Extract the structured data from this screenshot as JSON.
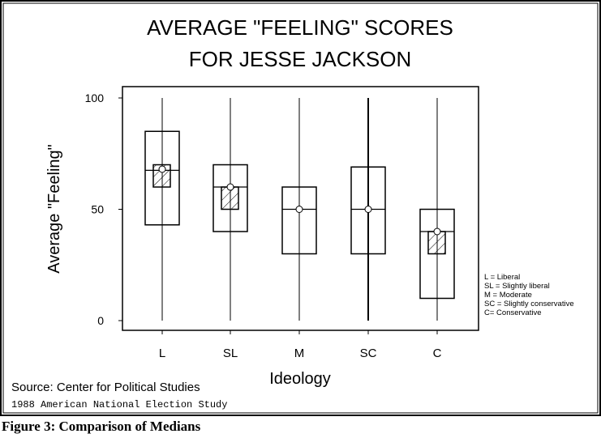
{
  "chart_data": {
    "type": "box",
    "title_lines": [
      "AVERAGE \"FEELING\" SCORES",
      "FOR JESSE JACKSON"
    ],
    "xlabel": "Ideology",
    "ylabel": "Average \"Feeling\"",
    "ylim": [
      0,
      100
    ],
    "yticks": [
      0,
      50,
      100
    ],
    "categories": [
      "L",
      "SL",
      "M",
      "SC",
      "C"
    ],
    "boxes": [
      {
        "category": "L",
        "whisker_low": 0,
        "whisker_high": 100,
        "q1": 43,
        "q3": 85,
        "median": 67.5,
        "mean": 68,
        "inner_low": 60,
        "inner_high": 70
      },
      {
        "category": "SL",
        "whisker_low": 0,
        "whisker_high": 100,
        "q1": 40,
        "q3": 70,
        "median": 60,
        "mean": 60,
        "inner_low": 50,
        "inner_high": 60
      },
      {
        "category": "M",
        "whisker_low": 0,
        "whisker_high": 100,
        "q1": 30,
        "q3": 60,
        "median": 50,
        "mean": 50
      },
      {
        "category": "SC",
        "whisker_low": 0,
        "whisker_high": 100,
        "q1": 30,
        "q3": 69,
        "median": 50,
        "mean": 50
      },
      {
        "category": "C",
        "whisker_low": 0,
        "whisker_high": 100,
        "q1": 10,
        "q3": 50,
        "median": 40,
        "mean": 40,
        "inner_low": 30,
        "inner_high": 40
      }
    ],
    "legend": [
      "L = Liberal",
      "SL = Slightly liberal",
      "M = Moderate",
      "SC = Slightly conservative",
      "C= Conservative"
    ],
    "legend_position": "right",
    "source": "Source: Center for Political Studies",
    "note": "1988 American National Election Study"
  },
  "caption": "Figure 3: Comparison of Medians"
}
